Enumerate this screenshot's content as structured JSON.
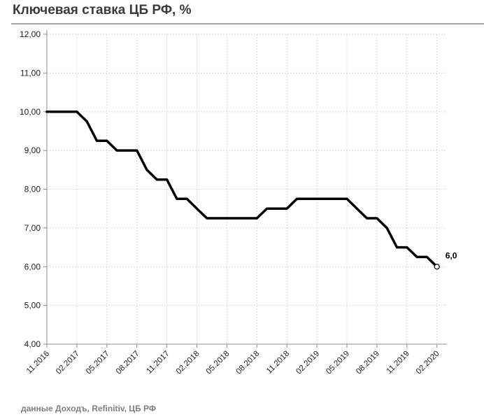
{
  "title": "Ключевая ставка ЦБ РФ, %",
  "source": "данные Доходъ, Refinitiv, ЦБ РФ",
  "colors": {
    "line": "#000000",
    "grid": "#d9d9d9",
    "axis": "#8c8c8c",
    "title_rule": "#a6a6a6"
  },
  "chart_data": {
    "type": "line",
    "title": "Ключевая ставка ЦБ РФ, %",
    "xlabel": "",
    "ylabel": "",
    "ylim": [
      4,
      12
    ],
    "y_ticks": [
      "4,00",
      "5,00",
      "6,00",
      "7,00",
      "8,00",
      "9,00",
      "10,00",
      "11,00",
      "12,00"
    ],
    "x_ticks": [
      "11.2016",
      "02.2017",
      "05.2017",
      "08.2017",
      "11.2017",
      "02.2018",
      "05.2018",
      "08.2018",
      "11.2018",
      "02.2019",
      "05.2019",
      "08.2019",
      "11.2019",
      "02.2020"
    ],
    "xlim": [
      "2016-11",
      "2020-02"
    ],
    "grid": {
      "horizontal": true,
      "vertical": true,
      "style": "dashed"
    },
    "legend": "none",
    "series": [
      {
        "x": [
          "2016-11",
          "2016-12",
          "2017-01",
          "2017-02",
          "2017-03",
          "2017-04",
          "2017-05",
          "2017-06",
          "2017-07",
          "2017-08",
          "2017-09",
          "2017-10",
          "2017-11",
          "2017-12",
          "2018-01",
          "2018-02",
          "2018-03",
          "2018-04",
          "2018-05",
          "2018-06",
          "2018-07",
          "2018-08",
          "2018-09",
          "2018-10",
          "2018-11",
          "2018-12",
          "2019-01",
          "2019-02",
          "2019-03",
          "2019-04",
          "2019-05",
          "2019-06",
          "2019-07",
          "2019-08",
          "2019-09",
          "2019-10",
          "2019-11",
          "2019-12",
          "2020-01",
          "2020-02"
        ],
        "values": [
          10.0,
          10.0,
          10.0,
          10.0,
          9.75,
          9.25,
          9.25,
          9.0,
          9.0,
          9.0,
          8.5,
          8.25,
          8.25,
          7.75,
          7.75,
          7.5,
          7.25,
          7.25,
          7.25,
          7.25,
          7.25,
          7.25,
          7.5,
          7.5,
          7.5,
          7.75,
          7.75,
          7.75,
          7.75,
          7.75,
          7.75,
          7.5,
          7.25,
          7.25,
          7.0,
          6.5,
          6.5,
          6.25,
          6.25,
          6.0
        ]
      }
    ],
    "annotations": [
      {
        "x": "2020-02",
        "y": 6.0,
        "text": "6,0"
      }
    ]
  }
}
